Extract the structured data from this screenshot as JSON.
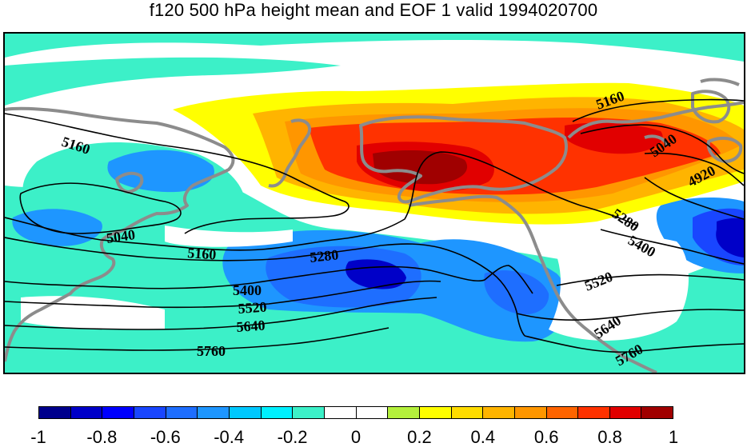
{
  "title": "f120 500 hPa height mean and EOF 1 valid 1994020700",
  "contour_labels": [
    "5160",
    "5040",
    "5160",
    "5280",
    "5400",
    "5520",
    "5640",
    "5760",
    "5160",
    "5040",
    "4920",
    "5280",
    "5400",
    "5520",
    "5640",
    "5760"
  ],
  "colorbar": {
    "colors": [
      "#00008c",
      "#0000c8",
      "#0000ff",
      "#1946ff",
      "#1e6eff",
      "#1e96ff",
      "#00c8ff",
      "#00f0ff",
      "#3cf0c8",
      "#ffffff",
      "#ffffff",
      "#b4f03c",
      "#ffff00",
      "#ffdc00",
      "#ffb400",
      "#ff9600",
      "#ff6400",
      "#ff3200",
      "#e10000",
      "#a00000"
    ],
    "tick_labels": [
      "-1",
      "-0.8",
      "-0.6",
      "-0.4",
      "-0.2",
      "0",
      "0.2",
      "0.4",
      "0.6",
      "0.8",
      "1"
    ]
  }
}
